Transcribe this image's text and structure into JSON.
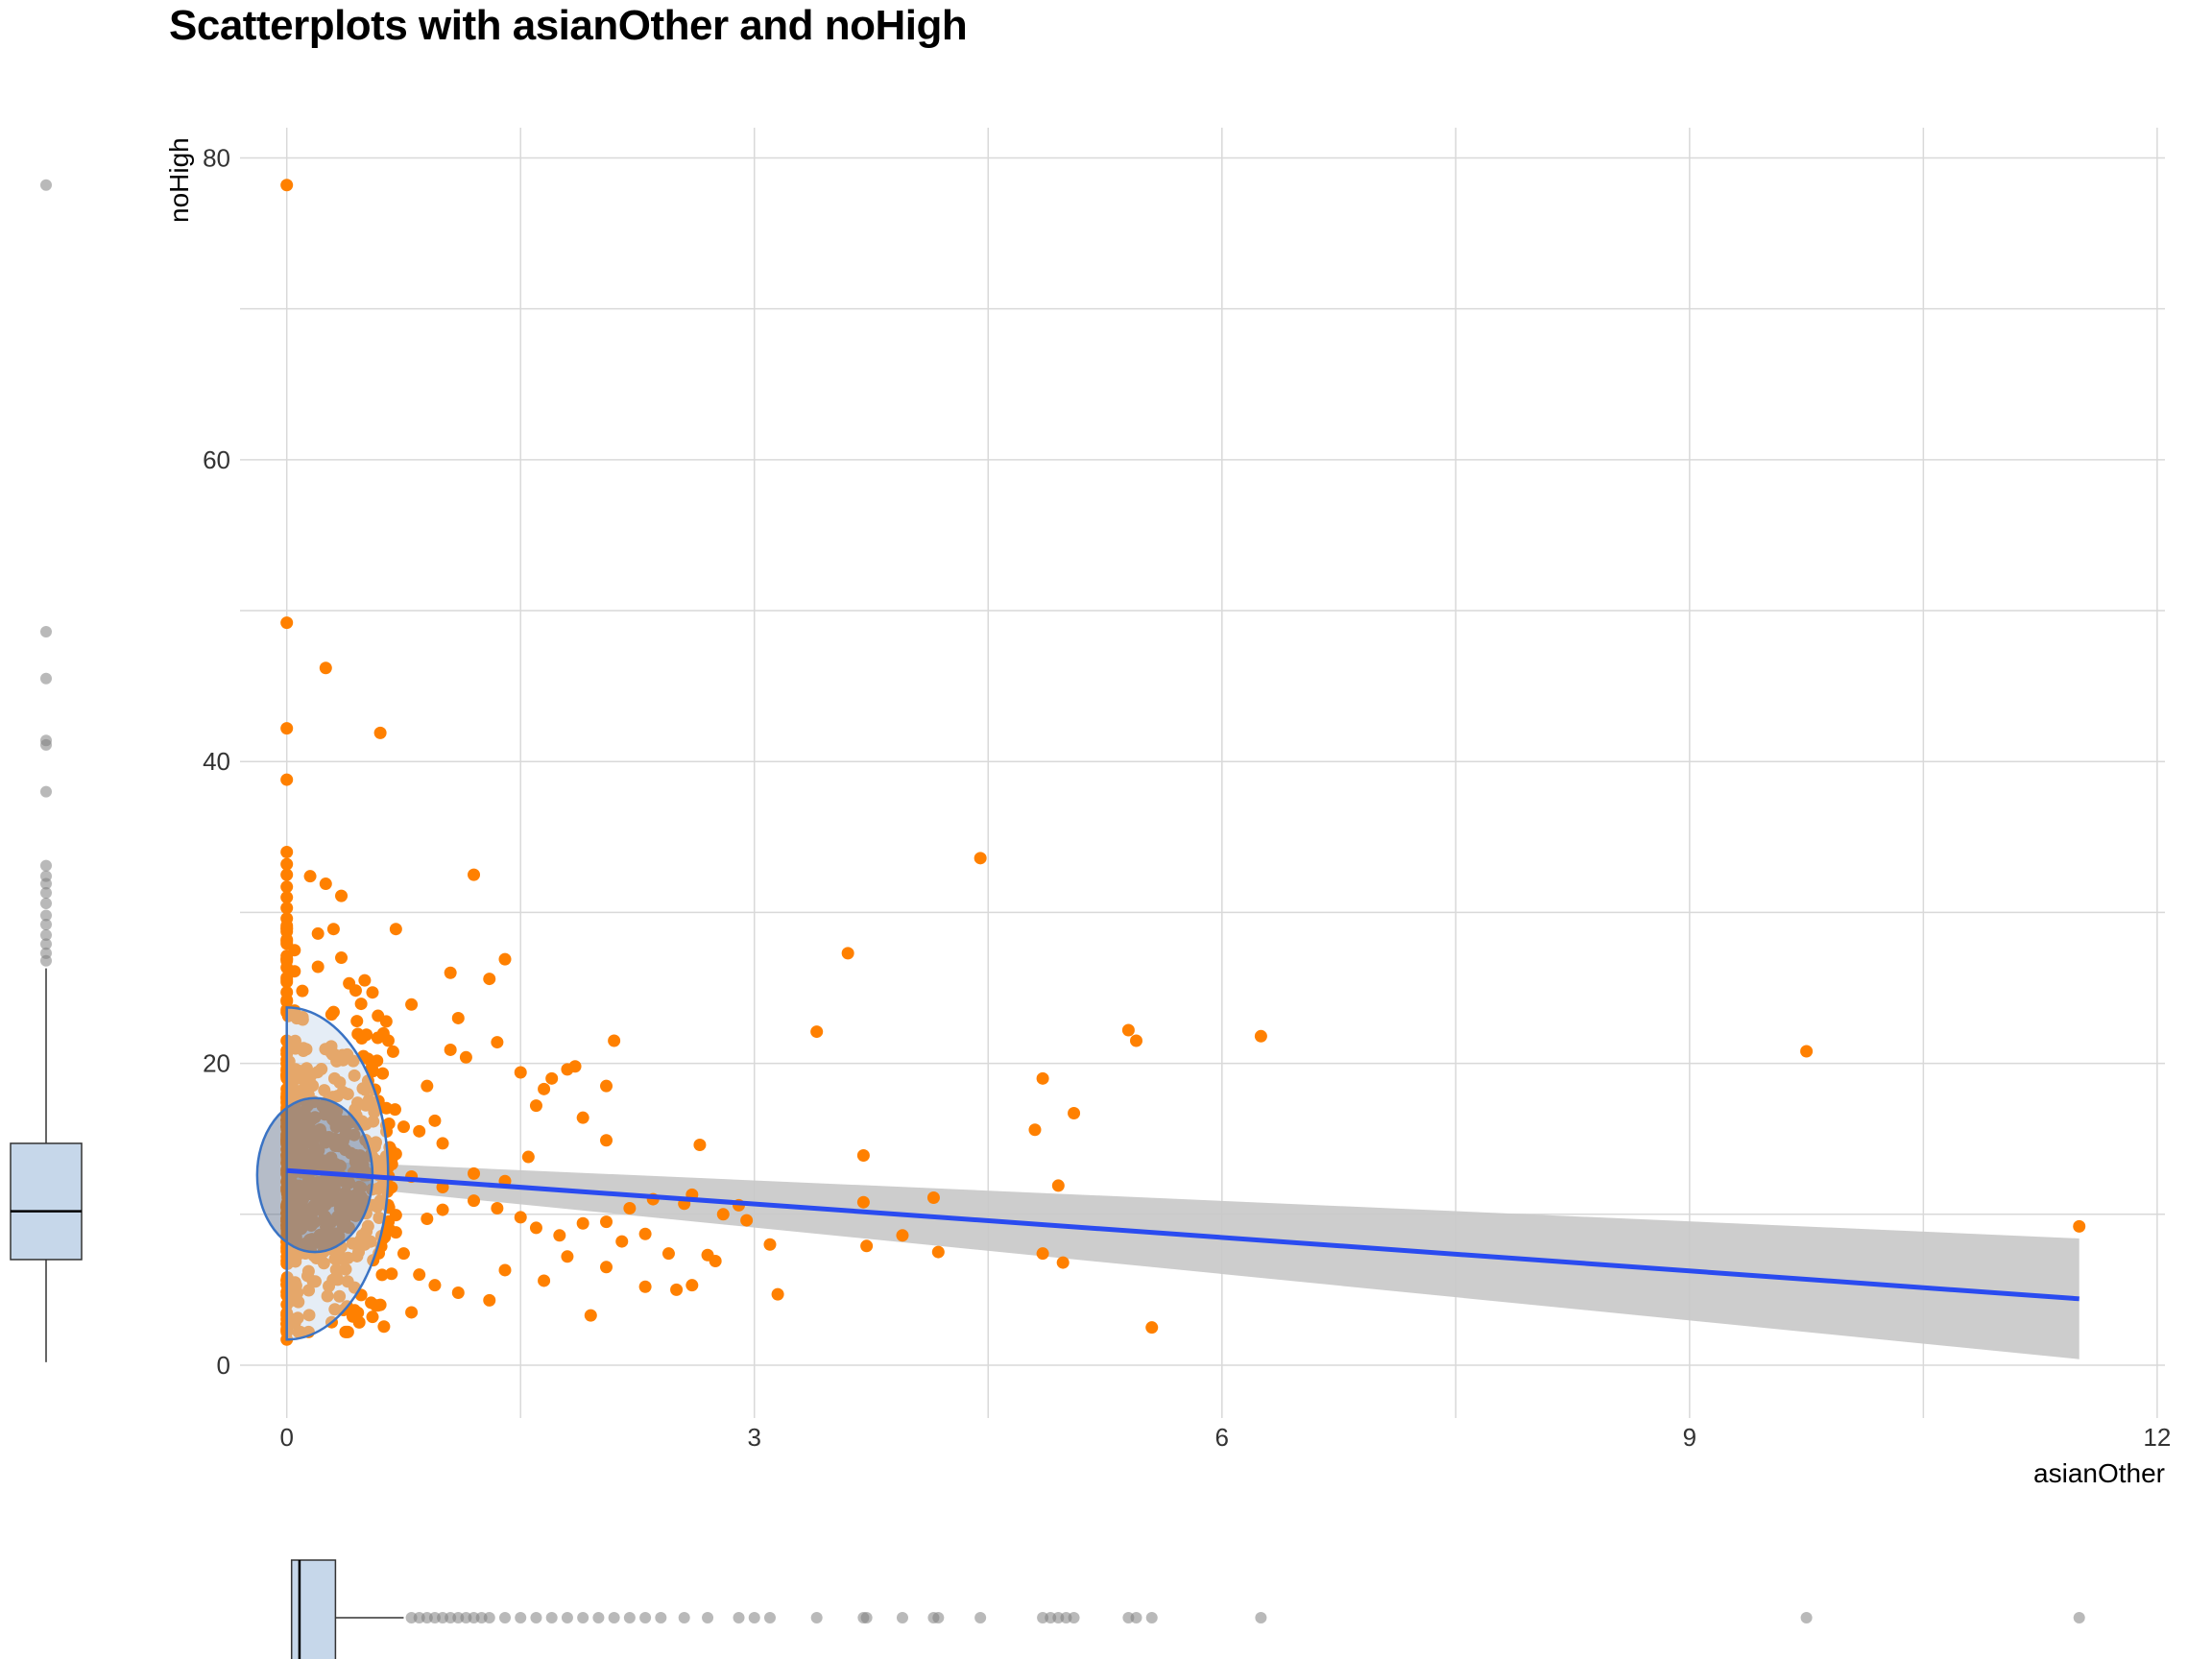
{
  "chart_data": {
    "type": "scatter",
    "title": "Scatterplots with asianOther and noHigh",
    "xlabel": "asianOther",
    "ylabel": "noHigh",
    "xlim": [
      -0.3,
      12.05
    ],
    "ylim": [
      -3.5,
      82
    ],
    "xticks": [
      "0",
      "3",
      "6",
      "9",
      "12"
    ],
    "yticks": [
      "0",
      "20",
      "40",
      "60",
      "80"
    ],
    "grid": true,
    "colors": {
      "points": "#ff8000",
      "regression_line": "#2a4bf0",
      "confidence_band": "#c8c8c8",
      "ellipse_fill": "#c6d7ea",
      "ellipse_stroke": "#3a73c4",
      "boxplot_fill": "#c6d7ea",
      "outliers": "#808080"
    },
    "regression": {
      "x": [
        0,
        11.5
      ],
      "y": [
        12.9,
        4.4
      ],
      "ci_low": [
        12.2,
        0.4
      ],
      "ci_high": [
        13.6,
        8.4
      ]
    },
    "ellipse_outer": {
      "cx": 0,
      "cy": 12.7,
      "rx": 0.65,
      "ry": 11.0
    },
    "ellipse_inner": {
      "cx": 0.18,
      "cy": 12.6,
      "rx": 0.37,
      "ry": 5.1
    },
    "boxplot_y": {
      "min": 0.2,
      "q1": 7.0,
      "median": 10.2,
      "q3": 14.7,
      "whisker_high": 26.3,
      "outliers": [
        78.2,
        48.6,
        45.5,
        41.4,
        41.1,
        38.0,
        33.1,
        32.4,
        31.9,
        31.3,
        30.6,
        29.8,
        29.2,
        28.5,
        27.9,
        27.3,
        26.8
      ]
    },
    "boxplot_x": {
      "min": 0,
      "q1": 0.03,
      "median": 0.1,
      "q3": 0.3,
      "whisker_high": 0.75,
      "outliers": [
        0.8,
        0.85,
        0.9,
        0.95,
        1.0,
        1.05,
        1.1,
        1.15,
        1.2,
        1.25,
        1.3,
        1.4,
        1.5,
        1.6,
        1.7,
        1.8,
        1.9,
        2.0,
        2.1,
        2.2,
        2.3,
        2.4,
        2.55,
        2.7,
        2.9,
        3.0,
        3.1,
        3.4,
        3.7,
        3.72,
        3.95,
        4.15,
        4.18,
        4.45,
        4.85,
        4.9,
        4.95,
        5.0,
        5.05,
        5.4,
        5.45,
        5.55,
        6.25,
        9.75,
        11.5
      ]
    },
    "points": [
      [
        0.0,
        78.2
      ],
      [
        0.0,
        49.2
      ],
      [
        0.25,
        46.2
      ],
      [
        0.0,
        42.2
      ],
      [
        0.6,
        41.9
      ],
      [
        0.0,
        38.8
      ],
      [
        0.0,
        34.0
      ],
      [
        0.0,
        33.2
      ],
      [
        0.0,
        32.5
      ],
      [
        0.0,
        31.7
      ],
      [
        0.0,
        31.0
      ],
      [
        0.0,
        30.3
      ],
      [
        0.0,
        29.6
      ],
      [
        0.0,
        28.9
      ],
      [
        0.0,
        28.2
      ],
      [
        0.05,
        27.5
      ],
      [
        0.0,
        26.8
      ],
      [
        0.05,
        26.1
      ],
      [
        0.0,
        25.4
      ],
      [
        0.1,
        24.8
      ],
      [
        0.0,
        24.1
      ],
      [
        0.05,
        23.5
      ],
      [
        0.15,
        32.4
      ],
      [
        0.25,
        31.9
      ],
      [
        0.35,
        31.1
      ],
      [
        0.2,
        28.6
      ],
      [
        0.3,
        28.9
      ],
      [
        0.7,
        28.9
      ],
      [
        0.35,
        27.0
      ],
      [
        0.2,
        26.4
      ],
      [
        0.4,
        25.3
      ],
      [
        0.5,
        25.5
      ],
      [
        0.55,
        24.7
      ],
      [
        0.8,
        23.9
      ],
      [
        0.3,
        23.4
      ],
      [
        0.45,
        22.8
      ],
      [
        1.2,
        32.5
      ],
      [
        1.05,
        26.0
      ],
      [
        1.3,
        25.6
      ],
      [
        1.4,
        26.9
      ],
      [
        1.1,
        23.0
      ],
      [
        1.35,
        21.4
      ],
      [
        1.05,
        20.9
      ],
      [
        1.15,
        20.4
      ],
      [
        1.5,
        19.4
      ],
      [
        1.65,
        18.3
      ],
      [
        1.7,
        19.0
      ],
      [
        1.8,
        19.6
      ],
      [
        1.85,
        19.8
      ],
      [
        2.1,
        21.5
      ],
      [
        2.05,
        18.5
      ],
      [
        1.9,
        16.4
      ],
      [
        2.05,
        14.9
      ],
      [
        1.6,
        17.2
      ],
      [
        1.55,
        13.8
      ],
      [
        1.4,
        12.2
      ],
      [
        1.2,
        12.7
      ],
      [
        0.9,
        18.5
      ],
      [
        0.95,
        16.2
      ],
      [
        0.75,
        15.8
      ],
      [
        0.85,
        15.5
      ],
      [
        1.0,
        14.7
      ],
      [
        0.7,
        14.0
      ],
      [
        0.65,
        13.1
      ],
      [
        0.8,
        12.5
      ],
      [
        1.0,
        11.8
      ],
      [
        1.2,
        10.9
      ],
      [
        1.35,
        10.4
      ],
      [
        1.5,
        9.8
      ],
      [
        1.6,
        9.1
      ],
      [
        1.75,
        8.6
      ],
      [
        1.9,
        9.4
      ],
      [
        2.05,
        9.5
      ],
      [
        2.2,
        10.4
      ],
      [
        2.35,
        11.0
      ],
      [
        2.15,
        8.2
      ],
      [
        2.3,
        8.7
      ],
      [
        2.45,
        7.4
      ],
      [
        2.6,
        11.3
      ],
      [
        2.55,
        10.7
      ],
      [
        2.65,
        14.6
      ],
      [
        2.8,
        10.0
      ],
      [
        2.9,
        10.6
      ],
      [
        2.95,
        9.6
      ],
      [
        2.7,
        7.3
      ],
      [
        2.75,
        6.9
      ],
      [
        3.1,
        8.0
      ],
      [
        3.15,
        4.7
      ],
      [
        2.6,
        5.3
      ],
      [
        2.5,
        5.0
      ],
      [
        2.3,
        5.2
      ],
      [
        2.05,
        6.5
      ],
      [
        1.95,
        3.3
      ],
      [
        1.8,
        7.2
      ],
      [
        1.65,
        5.6
      ],
      [
        1.4,
        6.3
      ],
      [
        1.3,
        4.3
      ],
      [
        1.1,
        4.8
      ],
      [
        0.95,
        5.3
      ],
      [
        0.8,
        3.5
      ],
      [
        0.85,
        6.0
      ],
      [
        0.75,
        7.4
      ],
      [
        0.7,
        8.8
      ],
      [
        0.9,
        9.7
      ],
      [
        1.0,
        10.3
      ],
      [
        0.6,
        10.9
      ],
      [
        0.6,
        4.0
      ],
      [
        0.55,
        3.2
      ],
      [
        3.4,
        22.1
      ],
      [
        3.6,
        27.3
      ],
      [
        4.45,
        33.6
      ],
      [
        3.7,
        13.9
      ],
      [
        3.7,
        10.8
      ],
      [
        3.72,
        7.9
      ],
      [
        3.95,
        8.6
      ],
      [
        4.15,
        11.1
      ],
      [
        4.18,
        7.5
      ],
      [
        4.85,
        19.0
      ],
      [
        4.8,
        15.6
      ],
      [
        5.05,
        16.7
      ],
      [
        4.95,
        11.9
      ],
      [
        4.85,
        7.4
      ],
      [
        4.98,
        6.8
      ],
      [
        5.4,
        22.2
      ],
      [
        5.45,
        21.5
      ],
      [
        5.55,
        2.5
      ],
      [
        6.25,
        21.8
      ],
      [
        9.75,
        20.8
      ],
      [
        11.5,
        9.2
      ],
      [
        0.0,
        1.7
      ]
    ],
    "cluster_seed": 7
  }
}
